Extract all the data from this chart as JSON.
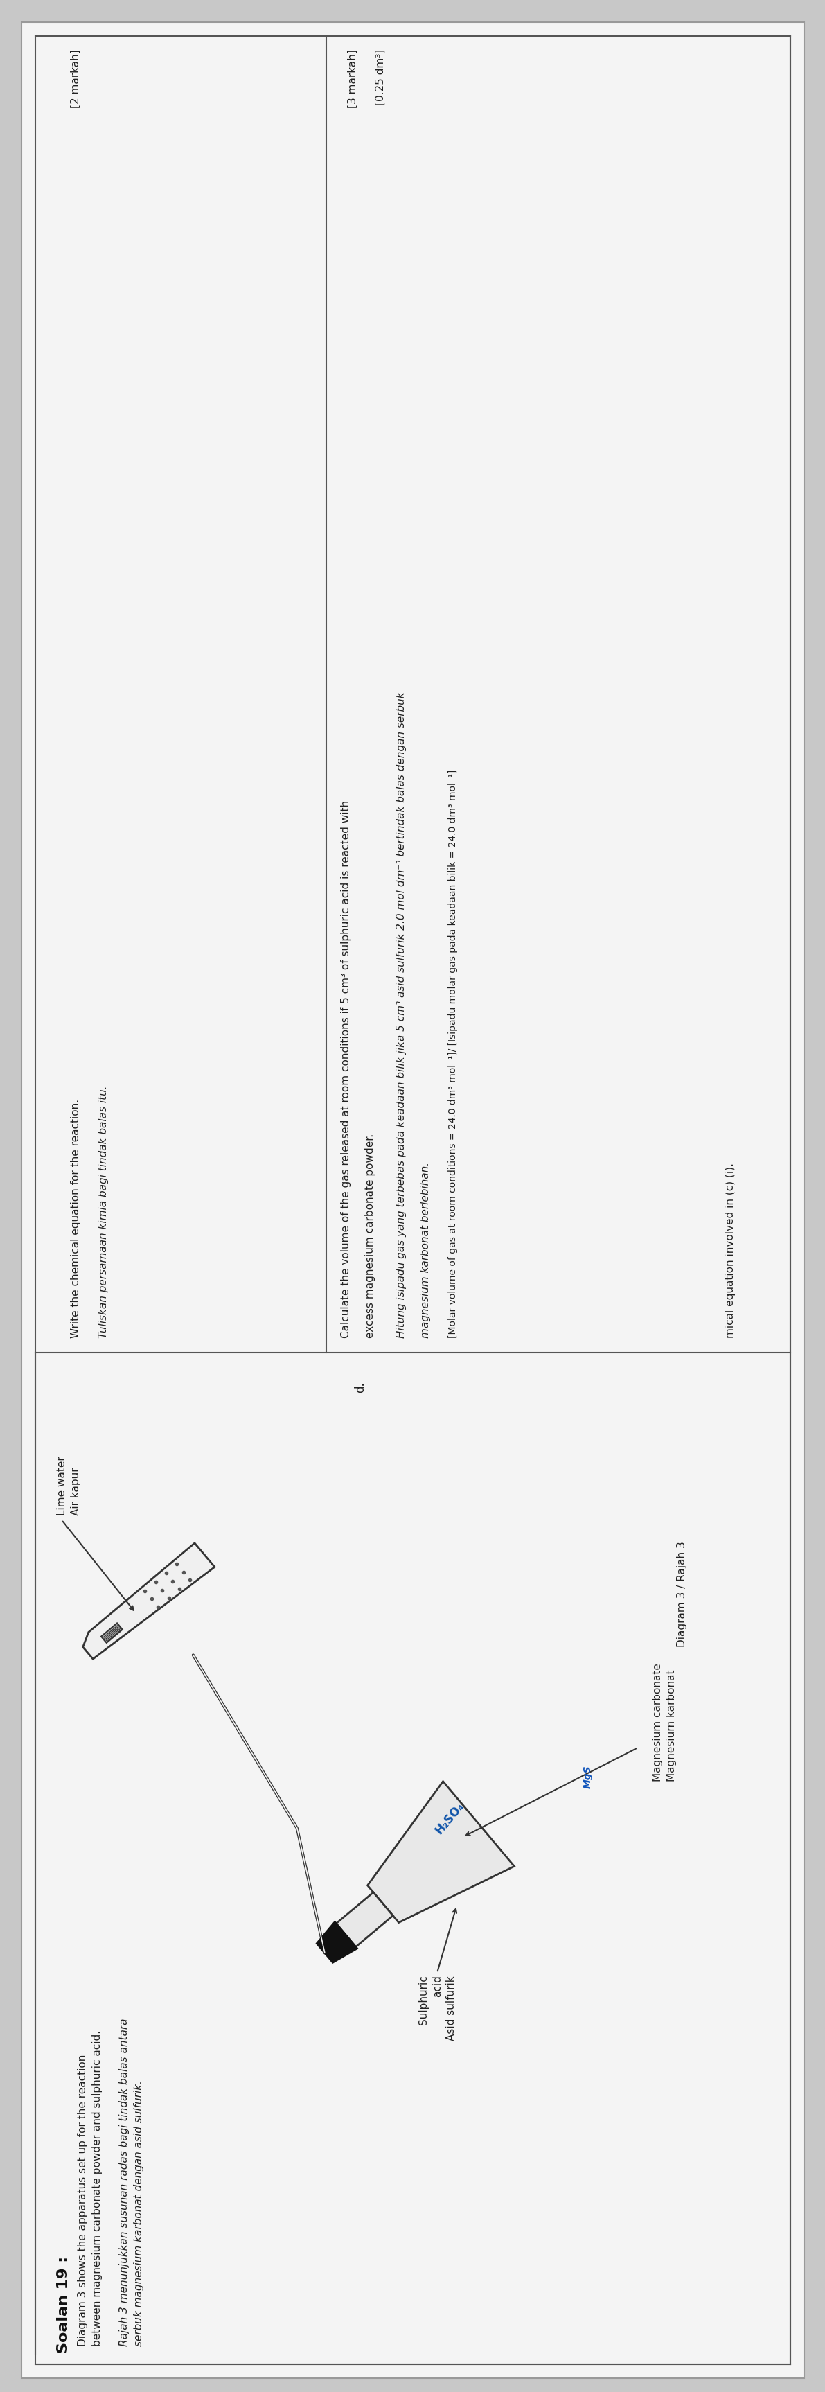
{
  "bg_color": "#c8c8c8",
  "paper_color": "#f0f0f0",
  "text_color": "#222222",
  "title": "Soalan 19 :",
  "left_heading_en": "Diagram 3 shows the apparatus set up for the reaction\nbetween magnesium carbonate powder and sulphuric acid.",
  "left_heading_ms": "Rajah 3 menunjukkan susunan radas bagi tindak balas antara\nserbuk magnesium karbonat dengan asid sulfurik.",
  "lime_water_label": "Lime water\nAir kapur",
  "sulphuric_label": "Sulphuric\nacid\nAsid sulfurik",
  "mgco3_label": "Magnesium carbonate\nMagnesium karbonat",
  "diagram_caption": "Diagram 3 / Rajah 3",
  "h2so4_label": "H₂SO₄",
  "q1_en": "Write the chemical equation for the reaction.",
  "q1_ms": "Tuliskan persamaan kimia bagi tindak balas itu.",
  "q1_marks": "[2 markah]",
  "q2_en": "Calculate the volume of the gas released at room conditions if 5 cm³ of sulphuric acid is reacted with excess magnesium carbonate powder.",
  "q2_ms_1": "Hitung isipadu gas yang terbebas pada keadaan bilik jika 5 cm³ asid sulfurik 2.0 mol dm⁻³ bertindak balas dengan serbuk",
  "q2_ms_2": "magnesium karbonat berlebihan.",
  "q2_note_en": "[Molar volume of gas at room conditions = 24.0 dm³ mol⁻¹] [Isipadu molar gas pada keadaan bilik = 24.0 dm³ mol⁻¹]",
  "q2_marks": "[3 markah]",
  "q2_answer": "[0.25 dm³]",
  "footer_text": "mical equation involved in (c) (i).",
  "label_d": "d.",
  "conc_label": "2.0 mol dm⁻³"
}
